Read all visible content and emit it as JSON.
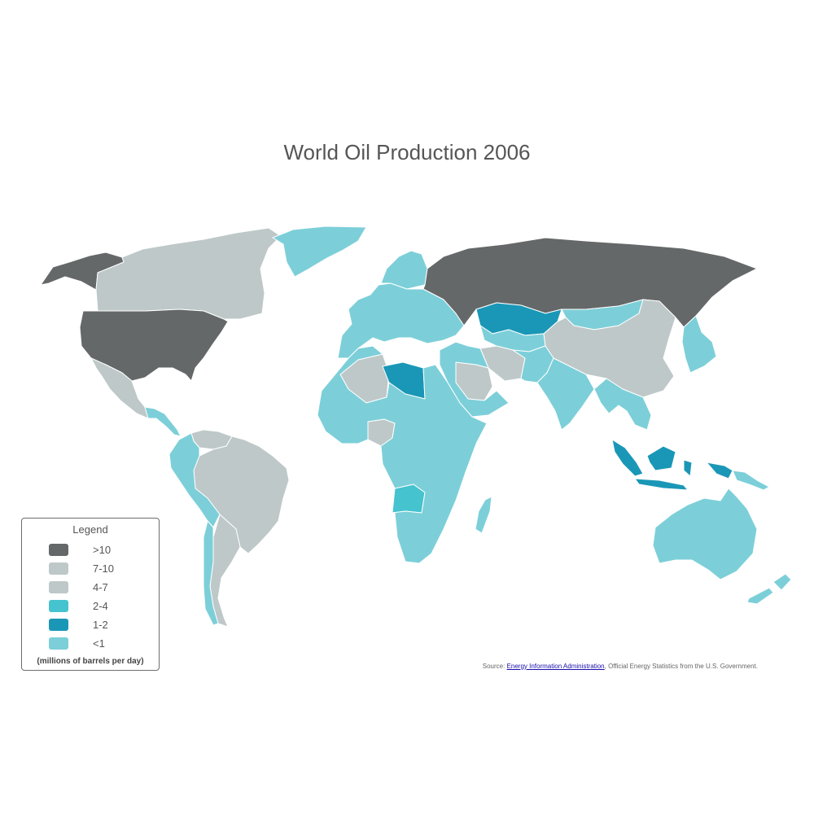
{
  "title": "World Oil Production 2006",
  "legend": {
    "title": "Legend",
    "note": "(millions of barrels per day)",
    "items": [
      {
        "label": ">10",
        "color": "#646868"
      },
      {
        "label": "7-10",
        "color": "#bec8c9"
      },
      {
        "label": "4-7",
        "color": "#bec8c9"
      },
      {
        "label": "2-4",
        "color": "#45c3cf"
      },
      {
        "label": "1-2",
        "color": "#1a97b6"
      },
      {
        "label": "<1",
        "color": "#7ccfd8"
      }
    ]
  },
  "source": {
    "prefix": "Source: ",
    "link_text": "Energy Information Administration",
    "suffix": ", Official Energy Statistics from the U.S. Government."
  },
  "map": {
    "colors": {
      "gt10": "#646868",
      "r7_10": "#bec8c9",
      "r4_7": "#bec8c9",
      "r2_4": "#45c3cf",
      "r1_2": "#1a97b6",
      "lt1": "#7ccfd8",
      "border": "#ffffff"
    },
    "regions": [
      {
        "name": "Alaska",
        "category": "gt10"
      },
      {
        "name": "Canada",
        "category": "r4_7"
      },
      {
        "name": "Greenland",
        "category": "lt1"
      },
      {
        "name": "United States",
        "category": "gt10"
      },
      {
        "name": "Mexico",
        "category": "r4_7"
      },
      {
        "name": "Central America",
        "category": "lt1"
      },
      {
        "name": "Venezuela",
        "category": "r4_7"
      },
      {
        "name": "Brazil",
        "category": "r4_7"
      },
      {
        "name": "Argentina",
        "category": "r4_7"
      },
      {
        "name": "Western South America",
        "category": "lt1"
      },
      {
        "name": "Southern South America",
        "category": "lt1"
      },
      {
        "name": "Europe",
        "category": "lt1"
      },
      {
        "name": "Scandinavia",
        "category": "lt1"
      },
      {
        "name": "Russia",
        "category": "gt10"
      },
      {
        "name": "Kazakhstan",
        "category": "r1_2"
      },
      {
        "name": "Central Asia",
        "category": "lt1"
      },
      {
        "name": "Mongolia",
        "category": "lt1"
      },
      {
        "name": "China",
        "category": "r4_7"
      },
      {
        "name": "Iran",
        "category": "r4_7"
      },
      {
        "name": "Saudi Arabia",
        "category": "r7_10"
      },
      {
        "name": "Arabian Peninsula",
        "category": "lt1"
      },
      {
        "name": "Pakistan Afghanistan",
        "category": "lt1"
      },
      {
        "name": "India",
        "category": "lt1"
      },
      {
        "name": "Southeast Asia",
        "category": "lt1"
      },
      {
        "name": "Japan Korea",
        "category": "lt1"
      },
      {
        "name": "Indonesia",
        "category": "r1_2"
      },
      {
        "name": "Papua",
        "category": "lt1"
      },
      {
        "name": "Australia",
        "category": "lt1"
      },
      {
        "name": "New Zealand",
        "category": "lt1"
      },
      {
        "name": "Algeria",
        "category": "r4_7"
      },
      {
        "name": "Libya",
        "category": "r1_2"
      },
      {
        "name": "Nigeria",
        "category": "r4_7"
      },
      {
        "name": "Angola",
        "category": "r2_4"
      },
      {
        "name": "Africa",
        "category": "lt1"
      },
      {
        "name": "Madagascar",
        "category": "lt1"
      }
    ]
  }
}
